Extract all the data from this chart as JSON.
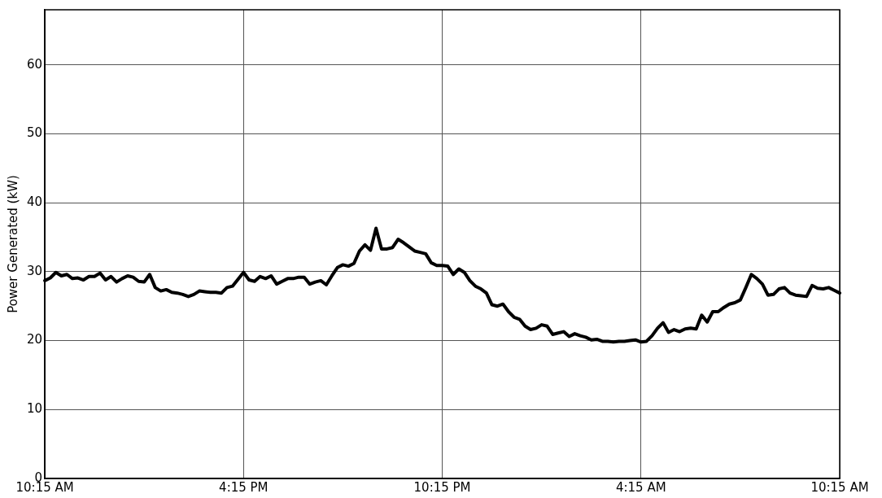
{
  "chart_data": {
    "type": "line",
    "ylabel": "Power Generated (kW)",
    "categories": [
      "10:15 AM",
      null,
      null,
      null,
      null,
      null,
      null,
      null,
      null,
      null,
      null,
      null,
      null,
      null,
      null,
      null,
      null,
      null,
      null,
      null,
      null,
      null,
      null,
      null,
      null,
      null,
      null,
      null,
      null,
      null,
      null,
      null,
      null,
      null,
      null,
      null,
      "4:15 PM",
      null,
      null,
      null,
      null,
      null,
      null,
      null,
      null,
      null,
      null,
      null,
      null,
      null,
      null,
      null,
      null,
      null,
      null,
      null,
      null,
      null,
      null,
      null,
      null,
      null,
      null,
      null,
      null,
      null,
      null,
      null,
      null,
      null,
      null,
      null,
      "10:15 PM",
      null,
      null,
      null,
      null,
      null,
      null,
      null,
      null,
      null,
      null,
      null,
      null,
      null,
      null,
      null,
      null,
      null,
      null,
      null,
      null,
      null,
      null,
      null,
      null,
      null,
      null,
      null,
      null,
      null,
      null,
      null,
      null,
      null,
      null,
      null,
      "4:15 AM",
      null,
      null,
      null,
      null,
      null,
      null,
      null,
      null,
      null,
      null,
      null,
      null,
      null,
      null,
      null,
      null,
      null,
      null,
      null,
      null,
      null,
      null,
      null,
      null,
      null,
      null,
      null,
      null,
      null,
      null,
      null,
      null,
      null,
      null,
      null,
      "10:15 AM"
    ],
    "series": [
      {
        "color": "#000000",
        "values": [
          28.7,
          29.1,
          29.9,
          29.4,
          29.6,
          29.0,
          29.1,
          28.8,
          29.3,
          29.3,
          29.8,
          28.8,
          29.3,
          28.5,
          29.0,
          29.4,
          29.2,
          28.6,
          28.5,
          29.6,
          27.7,
          27.2,
          27.4,
          27.0,
          26.9,
          26.7,
          26.4,
          26.7,
          27.2,
          27.1,
          27.0,
          27.0,
          26.9,
          27.7,
          27.9,
          28.9,
          29.9,
          28.8,
          28.6,
          29.3,
          29.0,
          29.4,
          28.2,
          28.6,
          29.0,
          29.0,
          29.2,
          29.2,
          28.2,
          28.5,
          28.7,
          28.1,
          29.4,
          30.6,
          31.0,
          30.8,
          31.2,
          33.0,
          33.9,
          33.1,
          36.3,
          33.3,
          33.3,
          33.5,
          34.7,
          34.2,
          33.6,
          33.0,
          32.8,
          32.6,
          31.3,
          30.9,
          30.9,
          30.8,
          29.6,
          30.4,
          29.9,
          28.7,
          27.9,
          27.5,
          26.9,
          25.2,
          25.0,
          25.3,
          24.2,
          23.4,
          23.1,
          22.1,
          21.6,
          21.8,
          22.3,
          22.1,
          20.9,
          21.1,
          21.3,
          20.6,
          21.0,
          20.7,
          20.5,
          20.1,
          20.2,
          19.9,
          19.9,
          19.8,
          19.9,
          19.9,
          20.0,
          20.1,
          19.8,
          19.9,
          20.7,
          21.8,
          22.6,
          21.2,
          21.6,
          21.3,
          21.7,
          21.8,
          21.7,
          23.7,
          22.7,
          24.2,
          24.2,
          24.8,
          25.3,
          25.5,
          25.9,
          27.7,
          29.6,
          29.0,
          28.2,
          26.6,
          26.7,
          27.5,
          27.7,
          26.9,
          26.6,
          26.5,
          26.4,
          28.0,
          27.6,
          27.5,
          27.7,
          27.3,
          26.9
        ]
      }
    ],
    "ylim": [
      0,
      68
    ],
    "yticks": [
      0,
      10,
      20,
      30,
      40,
      50,
      60
    ],
    "grid": true,
    "legend": false,
    "marker": "none",
    "line_style": "solid"
  }
}
